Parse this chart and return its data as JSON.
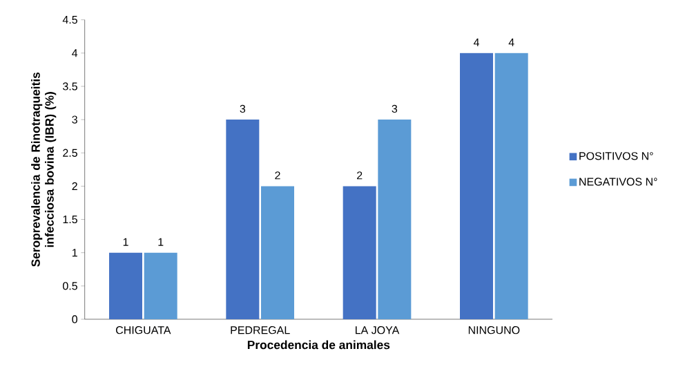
{
  "chart_data": {
    "type": "bar",
    "xlabel": "Procedencia de animales",
    "ylabel": "Seroprevalencia de Rinotraqueitis infecciosa bovina (IBR) (%)",
    "categories": [
      "CHIGUATA",
      "PEDREGAL",
      "LA JOYA",
      "NINGUNO"
    ],
    "series": [
      {
        "name": "POSITIVOS  N°",
        "color": "#4472c4",
        "values": [
          1,
          3,
          2,
          4
        ]
      },
      {
        "name": "NEGATIVOS  N°",
        "color": "#5b9bd5",
        "values": [
          1,
          2,
          3,
          4
        ]
      }
    ],
    "ylim": [
      0,
      4.5
    ],
    "yticks": [
      0,
      0.5,
      1,
      1.5,
      2,
      2.5,
      3,
      3.5,
      4,
      4.5
    ],
    "data_labels": true,
    "grid": false,
    "legend": "right"
  }
}
